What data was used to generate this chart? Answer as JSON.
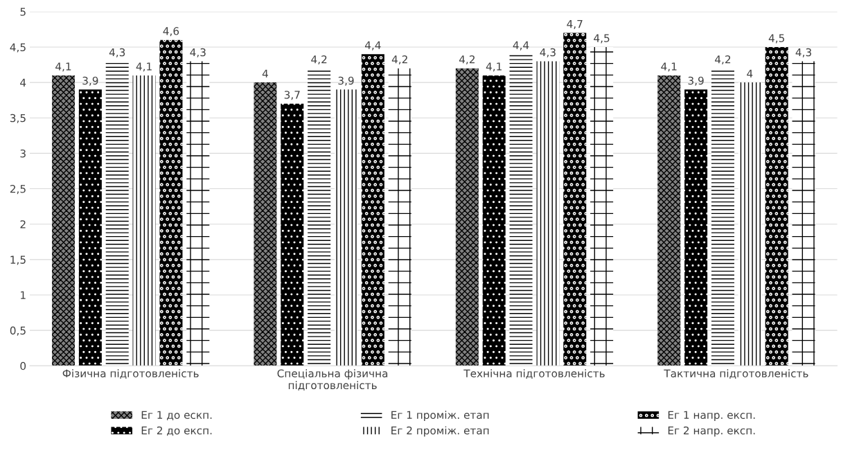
{
  "chart_data": {
    "type": "bar",
    "categories": [
      "Фізична підготовленість",
      "Спеціальна фізична\nпідготовленість",
      "Технічна підготовленість",
      "Тактична підготовленість"
    ],
    "series": [
      {
        "name": "Ег 1 до ескп.",
        "color": "#808080",
        "values": [
          4.1,
          4.0,
          4.2,
          4.1
        ],
        "value_labels": [
          "4,1",
          "4",
          "4,2",
          "4,1"
        ]
      },
      {
        "name": "Ег 2 до експ.",
        "color": "#000000",
        "values": [
          3.9,
          3.7,
          4.1,
          3.9
        ],
        "value_labels": [
          "3,9",
          "3,7",
          "4,1",
          "3,9"
        ]
      },
      {
        "name": "Ег 1 проміж. етап",
        "color": "#ffffff",
        "values": [
          4.3,
          4.2,
          4.4,
          4.2
        ],
        "value_labels": [
          "4,3",
          "4,2",
          "4,4",
          "4,2"
        ]
      },
      {
        "name": "Ег 2 проміж. етап",
        "color": "#ffffff",
        "values": [
          4.1,
          3.9,
          4.3,
          4.0
        ],
        "value_labels": [
          "4,1",
          "3,9",
          "4,3",
          "4"
        ]
      },
      {
        "name": "Ег 1 напр. експ.",
        "color": "#000000",
        "values": [
          4.6,
          4.4,
          4.7,
          4.5
        ],
        "value_labels": [
          "4,6",
          "4,4",
          "4,7",
          "4,5"
        ]
      },
      {
        "name": "Ег 2 напр. експ.",
        "color": "#ffffff",
        "values": [
          4.3,
          4.2,
          4.5,
          4.3
        ],
        "value_labels": [
          "4,3",
          "4,2",
          "4,5",
          "4,3"
        ]
      }
    ],
    "ylim": [
      0,
      5
    ],
    "yticks": [
      0,
      {
        "value": 0.5,
        "label": "0,5"
      },
      1,
      {
        "value": 1.5,
        "label": "1,5"
      },
      2,
      {
        "value": 2.5,
        "label": "2,5"
      },
      3,
      {
        "value": 3.5,
        "label": "3,5"
      },
      4,
      {
        "value": 4.5,
        "label": "4,5"
      },
      5
    ],
    "grid": "y",
    "legend": "bottom"
  }
}
